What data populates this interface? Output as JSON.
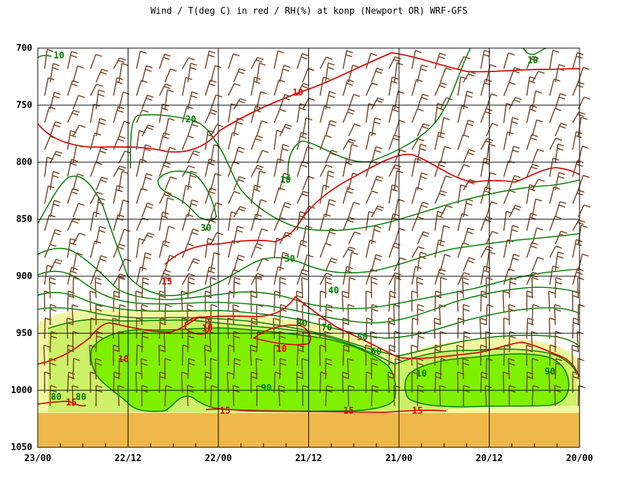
{
  "chart_data": {
    "type": "contour",
    "title": "Wind / T(deg C) in red / RH(%) at konp (Newport OR)  WRF-GFS",
    "xlabel": "",
    "ylabel": "",
    "x_ticks": [
      "23/00",
      "22/12",
      "22/00",
      "21/12",
      "21/00",
      "20/12",
      "20/00"
    ],
    "y_ticks": [
      700,
      750,
      800,
      850,
      900,
      950,
      1000,
      1050
    ],
    "ylim": [
      1050,
      700
    ],
    "grid": true,
    "colors": {
      "temperature": "#e00000",
      "rh": "#008000",
      "wind": "#7a4a2a",
      "rh_fill_light": "#f0f7a0",
      "rh_fill_mid": "#ccf067",
      "rh_fill_high": "#7ff000",
      "ground": "#eeb94a"
    },
    "temperature_contours": [
      {
        "value": 10,
        "label": "10",
        "points": [
          [
            0,
            706
          ],
          [
            0.1,
            708
          ],
          [
            0.22,
            708
          ],
          [
            0.32,
            720
          ],
          [
            0.38,
            736
          ],
          [
            0.5,
            748
          ],
          [
            0.6,
            752
          ],
          [
            0.75,
            750
          ],
          [
            0.85,
            746
          ],
          [
            1,
            746
          ]
        ]
      },
      {
        "value": 10,
        "label": "10",
        "points": [
          [
            0,
            925
          ],
          [
            0.06,
            930
          ],
          [
            0.12,
            940
          ],
          [
            0.18,
            946
          ],
          [
            0.25,
            940
          ],
          [
            0.32,
            930
          ],
          [
            0.4,
            938
          ],
          [
            0.5,
            950
          ],
          [
            0.6,
            960
          ],
          [
            0.7,
            955
          ],
          [
            0.85,
            950
          ],
          [
            1,
            955
          ]
        ]
      },
      {
        "value": 15,
        "label": "15",
        "points": [
          [
            0,
            1003
          ],
          [
            0.06,
            1001
          ],
          [
            0.12,
            1003
          ],
          [
            0.22,
            1003
          ],
          [
            0.32,
            1003
          ],
          [
            0.4,
            1006
          ],
          [
            0.5,
            1006
          ],
          [
            0.6,
            1006
          ],
          [
            0.7,
            1006
          ],
          [
            0.85,
            1006
          ],
          [
            1,
            1006
          ]
        ]
      }
    ],
    "rh_contours": [
      {
        "value": 10,
        "label": "10"
      },
      {
        "value": 20,
        "label": "20"
      },
      {
        "value": 30,
        "label": "30"
      },
      {
        "value": 40,
        "label": "40"
      },
      {
        "value": 50,
        "label": "50"
      },
      {
        "value": 60,
        "label": "60"
      },
      {
        "value": 70,
        "label": "70"
      },
      {
        "value": 80,
        "label": "80"
      },
      {
        "value": 90,
        "label": "90"
      }
    ]
  }
}
